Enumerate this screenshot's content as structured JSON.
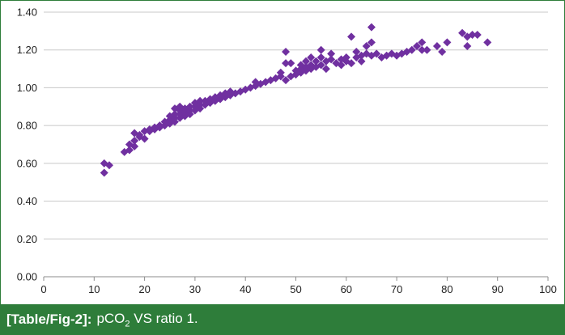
{
  "caption": {
    "ref": "[Table/Fig-2]:",
    "text_before": "pCO",
    "subscript": "2",
    "text_after": " VS ratio 1."
  },
  "chart_data": {
    "type": "scatter",
    "title": "",
    "xlabel": "",
    "ylabel": "",
    "xlim": [
      0,
      100
    ],
    "ylim": [
      0,
      1.4
    ],
    "x_ticks": [
      0,
      10,
      20,
      30,
      40,
      50,
      60,
      70,
      80,
      90,
      100
    ],
    "y_ticks": [
      "0.00",
      "0.20",
      "0.40",
      "0.60",
      "0.80",
      "1.00",
      "1.20",
      "1.40"
    ],
    "grid": "horizontal",
    "legend": "none",
    "marker": "diamond",
    "marker_color": "#7030a0",
    "grid_color": "#c8c8c8",
    "axis_color": "#8c8c8c",
    "frame_color": "#2e7d3a",
    "series": [
      {
        "points": [
          [
            12,
            0.55
          ],
          [
            12,
            0.6
          ],
          [
            13,
            0.59
          ],
          [
            16,
            0.66
          ],
          [
            17,
            0.67
          ],
          [
            17,
            0.7
          ],
          [
            18,
            0.69
          ],
          [
            18,
            0.72
          ],
          [
            18,
            0.76
          ],
          [
            19,
            0.74
          ],
          [
            19,
            0.75
          ],
          [
            20,
            0.73
          ],
          [
            20,
            0.77
          ],
          [
            21,
            0.77
          ],
          [
            21,
            0.78
          ],
          [
            22,
            0.78
          ],
          [
            22,
            0.79
          ],
          [
            23,
            0.79
          ],
          [
            23,
            0.8
          ],
          [
            24,
            0.8
          ],
          [
            24,
            0.82
          ],
          [
            25,
            0.81
          ],
          [
            25,
            0.83
          ],
          [
            25,
            0.85
          ],
          [
            26,
            0.82
          ],
          [
            26,
            0.84
          ],
          [
            26,
            0.86
          ],
          [
            26,
            0.89
          ],
          [
            27,
            0.84
          ],
          [
            27,
            0.86
          ],
          [
            27,
            0.88
          ],
          [
            27,
            0.9
          ],
          [
            28,
            0.85
          ],
          [
            28,
            0.87
          ],
          [
            28,
            0.89
          ],
          [
            29,
            0.86
          ],
          [
            29,
            0.88
          ],
          [
            29,
            0.9
          ],
          [
            30,
            0.88
          ],
          [
            30,
            0.9
          ],
          [
            30,
            0.92
          ],
          [
            31,
            0.89
          ],
          [
            31,
            0.91
          ],
          [
            31,
            0.93
          ],
          [
            32,
            0.91
          ],
          [
            32,
            0.93
          ],
          [
            33,
            0.92
          ],
          [
            33,
            0.94
          ],
          [
            34,
            0.93
          ],
          [
            34,
            0.95
          ],
          [
            35,
            0.94
          ],
          [
            35,
            0.96
          ],
          [
            36,
            0.95
          ],
          [
            36,
            0.97
          ],
          [
            37,
            0.96
          ],
          [
            37,
            0.98
          ],
          [
            38,
            0.97
          ],
          [
            39,
            0.98
          ],
          [
            40,
            0.99
          ],
          [
            41,
            1.0
          ],
          [
            42,
            1.01
          ],
          [
            42,
            1.03
          ],
          [
            43,
            1.02
          ],
          [
            44,
            1.03
          ],
          [
            45,
            1.04
          ],
          [
            46,
            1.05
          ],
          [
            47,
            1.06
          ],
          [
            47,
            1.08
          ],
          [
            48,
            1.04
          ],
          [
            48,
            1.13
          ],
          [
            48,
            1.19
          ],
          [
            49,
            1.06
          ],
          [
            49,
            1.13
          ],
          [
            50,
            1.07
          ],
          [
            50,
            1.09
          ],
          [
            51,
            1.08
          ],
          [
            51,
            1.1
          ],
          [
            51,
            1.12
          ],
          [
            52,
            1.09
          ],
          [
            52,
            1.11
          ],
          [
            52,
            1.14
          ],
          [
            53,
            1.1
          ],
          [
            53,
            1.12
          ],
          [
            53,
            1.16
          ],
          [
            54,
            1.11
          ],
          [
            54,
            1.14
          ],
          [
            55,
            1.12
          ],
          [
            55,
            1.16
          ],
          [
            55,
            1.2
          ],
          [
            56,
            1.1
          ],
          [
            56,
            1.14
          ],
          [
            57,
            1.15
          ],
          [
            57,
            1.18
          ],
          [
            58,
            1.13
          ],
          [
            59,
            1.12
          ],
          [
            59,
            1.15
          ],
          [
            60,
            1.14
          ],
          [
            60,
            1.16
          ],
          [
            61,
            1.13
          ],
          [
            61,
            1.27
          ],
          [
            62,
            1.16
          ],
          [
            62,
            1.19
          ],
          [
            63,
            1.14
          ],
          [
            63,
            1.17
          ],
          [
            64,
            1.18
          ],
          [
            64,
            1.22
          ],
          [
            65,
            1.17
          ],
          [
            65,
            1.24
          ],
          [
            65,
            1.32
          ],
          [
            66,
            1.18
          ],
          [
            67,
            1.16
          ],
          [
            68,
            1.17
          ],
          [
            69,
            1.18
          ],
          [
            70,
            1.17
          ],
          [
            71,
            1.18
          ],
          [
            72,
            1.19
          ],
          [
            73,
            1.2
          ],
          [
            74,
            1.22
          ],
          [
            75,
            1.2
          ],
          [
            75,
            1.24
          ],
          [
            76,
            1.2
          ],
          [
            78,
            1.22
          ],
          [
            79,
            1.19
          ],
          [
            80,
            1.24
          ],
          [
            83,
            1.29
          ],
          [
            84,
            1.22
          ],
          [
            84,
            1.27
          ],
          [
            85,
            1.28
          ],
          [
            86,
            1.28
          ],
          [
            88,
            1.24
          ]
        ]
      }
    ]
  }
}
